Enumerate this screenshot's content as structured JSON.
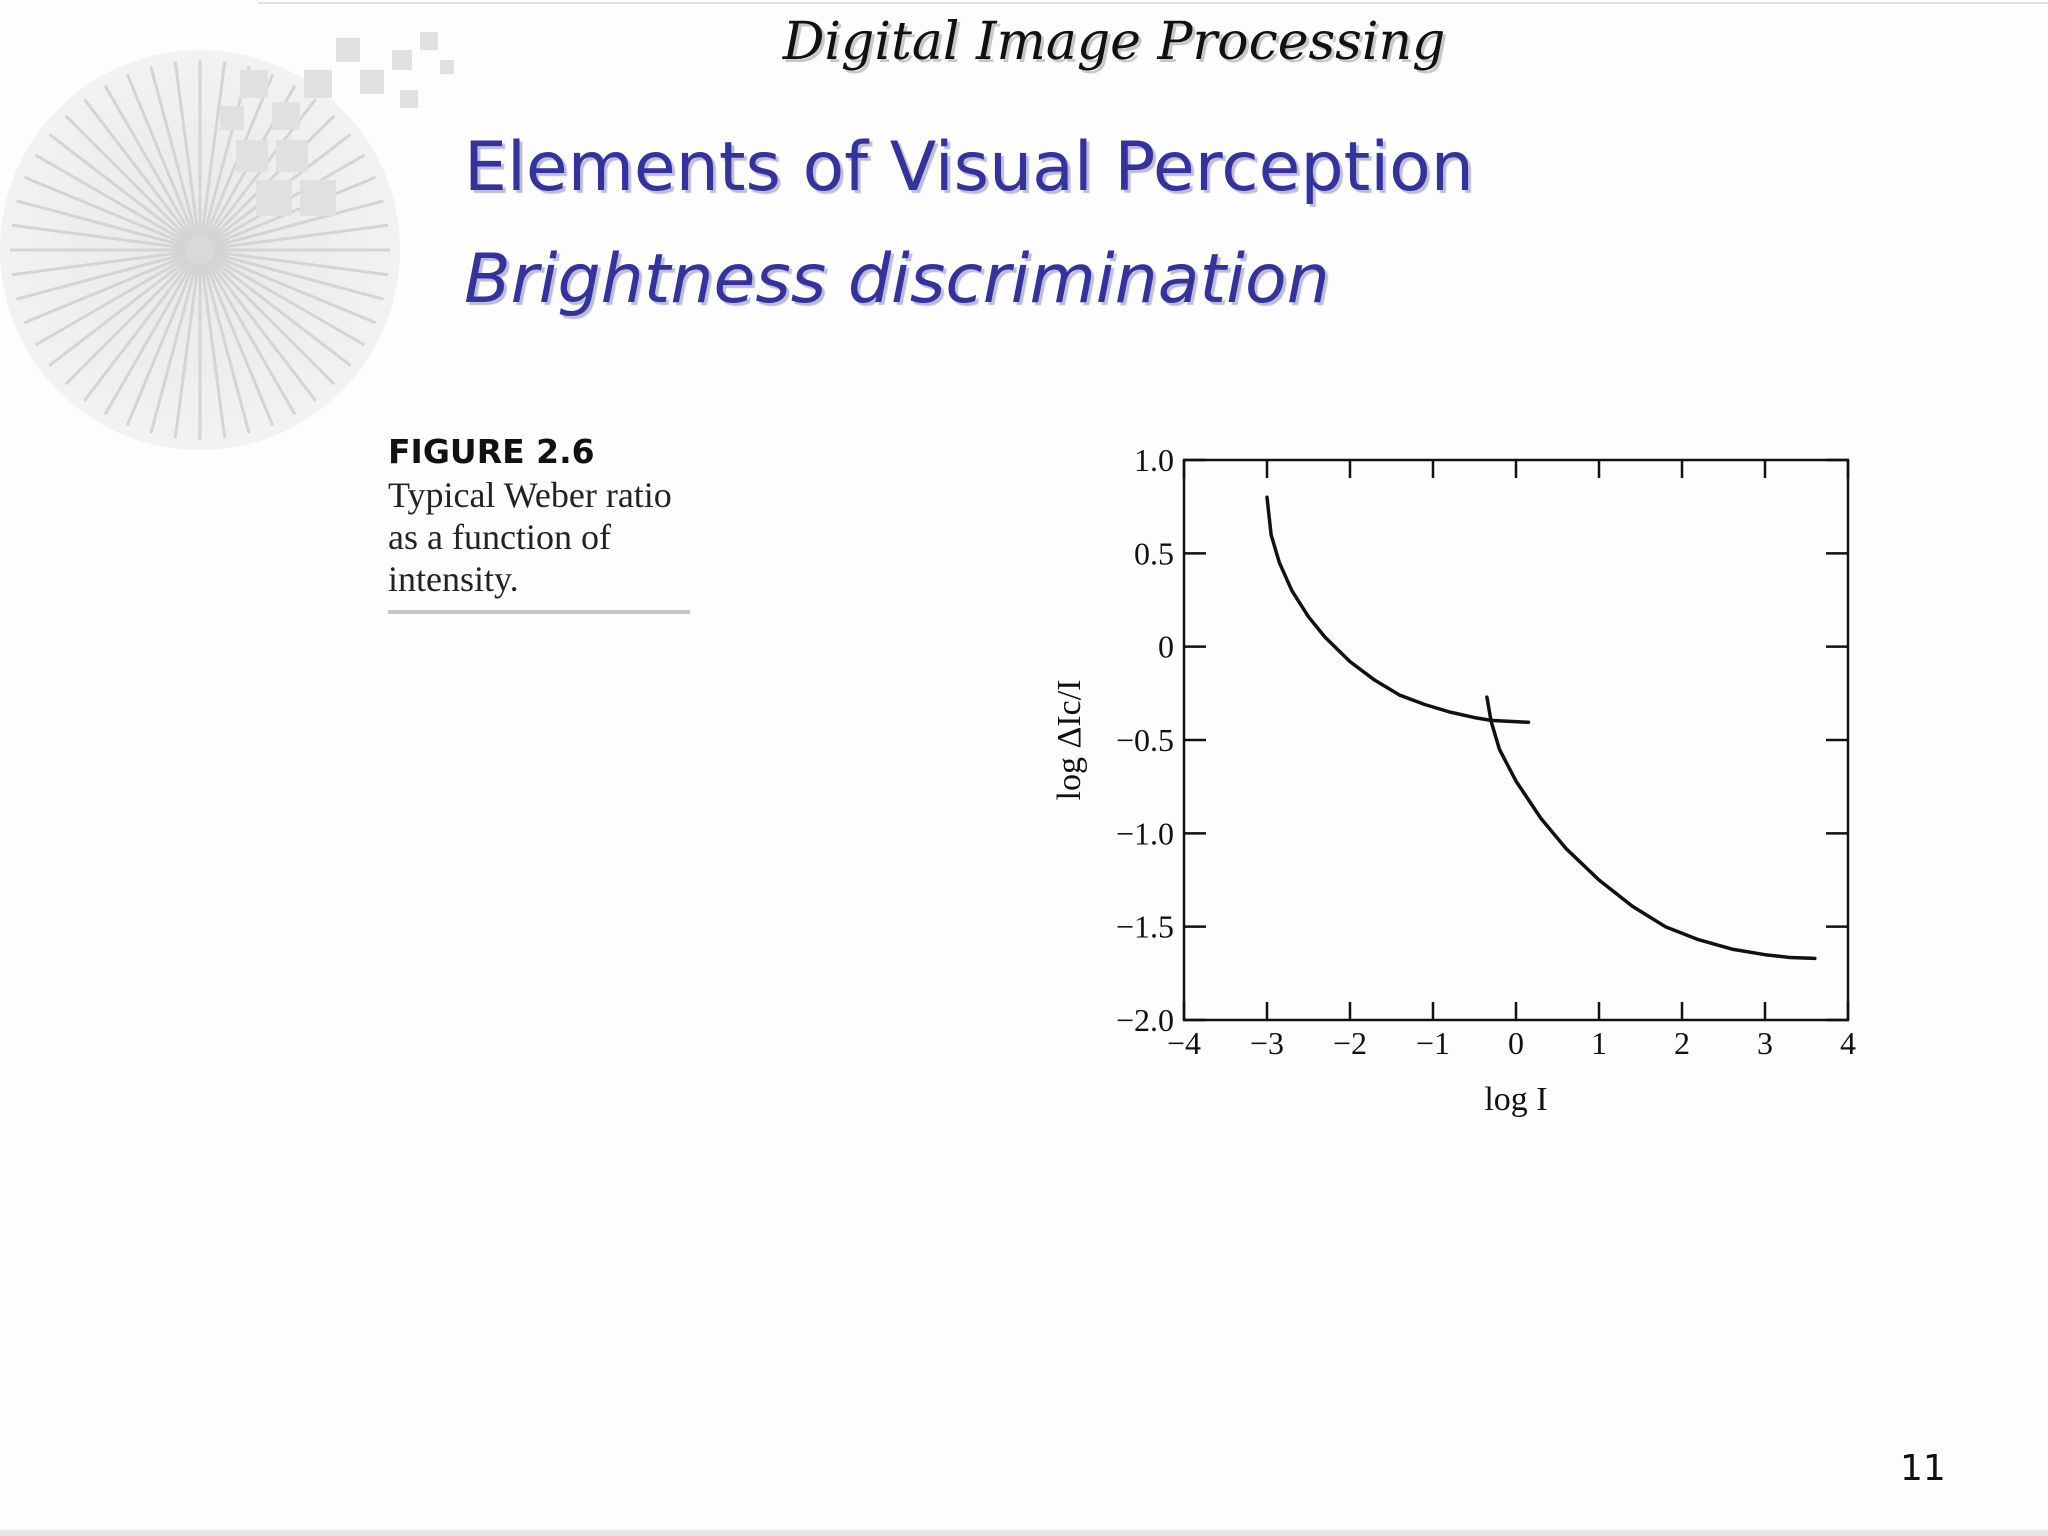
{
  "header": {
    "title": "Digital Image Processing"
  },
  "slide": {
    "title": "Elements of Visual Perception",
    "subtitle": "Brightness discrimination",
    "page_number": "11"
  },
  "figure": {
    "label": "FIGURE 2.6",
    "caption": "Typical Weber ratio as a function of intensity."
  },
  "chart_data": {
    "type": "line",
    "title": "",
    "xlabel": "log I",
    "ylabel": "log ΔIc/I",
    "xlim": [
      -4,
      4
    ],
    "ylim": [
      -2.0,
      1.0
    ],
    "xticks": [
      "−4",
      "−3",
      "−2",
      "−1",
      "0",
      "1",
      "2",
      "3",
      "4"
    ],
    "yticks": [
      "1.0",
      "0.5",
      "0",
      "−0.5",
      "−1.0",
      "−1.5",
      "−2.0"
    ],
    "grid": false,
    "series": [
      {
        "x": [
          -3.0,
          -2.95,
          -2.85,
          -2.7,
          -2.5,
          -2.3,
          -2.0,
          -1.7,
          -1.4,
          -1.1,
          -0.8,
          -0.5,
          -0.3,
          -0.1,
          0.15
        ],
        "y": [
          0.8,
          0.6,
          0.45,
          0.3,
          0.16,
          0.05,
          -0.08,
          -0.18,
          -0.26,
          -0.31,
          -0.35,
          -0.38,
          -0.395,
          -0.4,
          -0.405
        ]
      },
      {
        "x": [
          -0.35,
          -0.3,
          -0.2,
          0.0,
          0.3,
          0.6,
          1.0,
          1.4,
          1.8,
          2.2,
          2.6,
          3.0,
          3.3,
          3.6
        ],
        "y": [
          -0.27,
          -0.4,
          -0.55,
          -0.72,
          -0.92,
          -1.08,
          -1.25,
          -1.39,
          -1.5,
          -1.57,
          -1.62,
          -1.65,
          -1.665,
          -1.67
        ]
      }
    ]
  }
}
